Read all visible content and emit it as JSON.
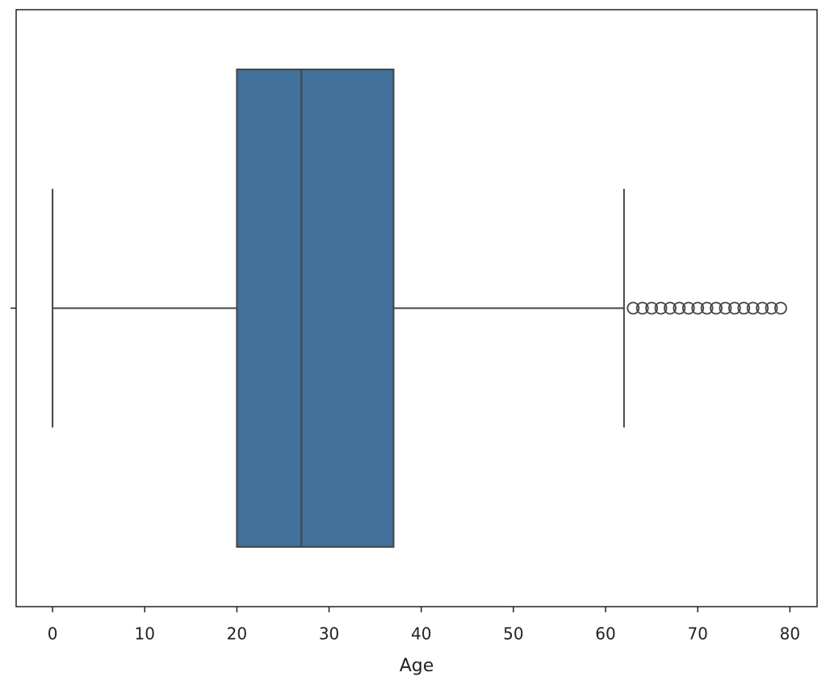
{
  "chart_data": {
    "type": "box",
    "xlabel": "Age",
    "categories": [
      null
    ],
    "boxes": [
      {
        "whislo": 0,
        "q1": 20,
        "med": 27,
        "q3": 37,
        "whishi": 62,
        "fliers": [
          63,
          64,
          65,
          66,
          67,
          68,
          69,
          70,
          71,
          72,
          73,
          74,
          75,
          76,
          77,
          78,
          79
        ]
      }
    ],
    "color": "#41709b",
    "edgecolor": "#444444",
    "xlim": [
      -3.95,
      82.95
    ],
    "xticks": [
      0,
      10,
      20,
      30,
      40,
      50,
      60,
      70,
      80
    ]
  }
}
